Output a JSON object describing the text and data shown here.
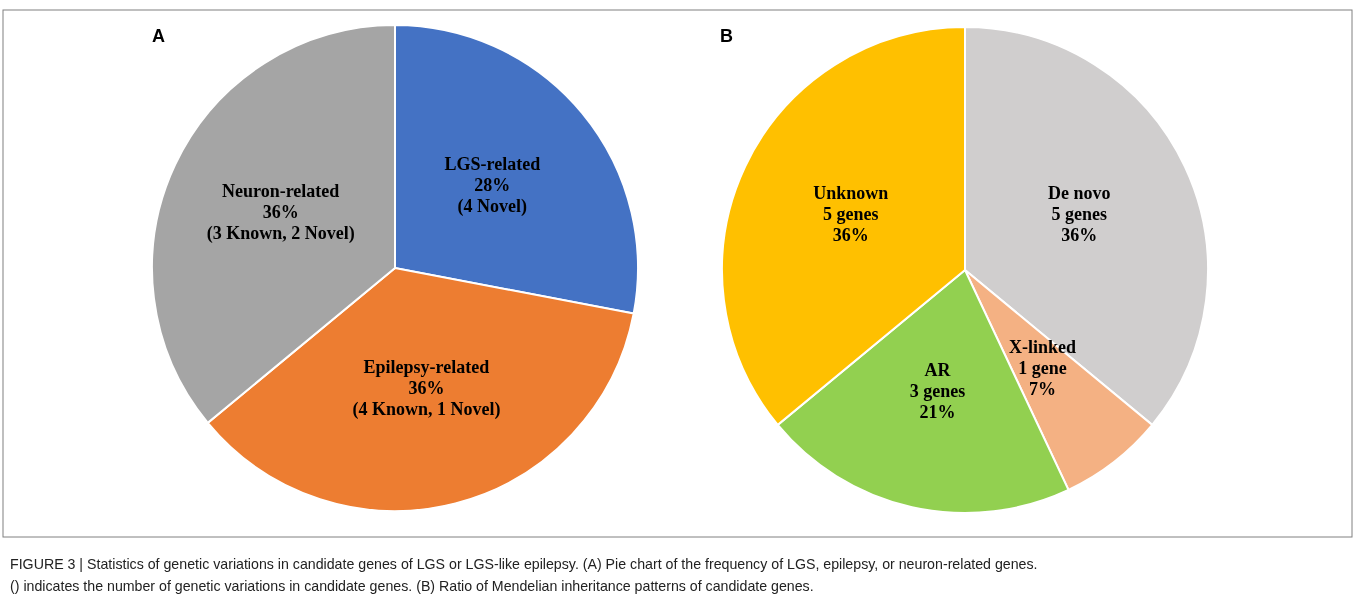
{
  "chart_data": [
    {
      "type": "pie",
      "title": "A",
      "categories": [
        "LGS-related",
        "Epilepsy-related",
        "Neuron-related"
      ],
      "values": [
        28,
        36,
        36
      ],
      "colors": [
        "#4472c4",
        "#ed7d31",
        "#a5a5a5"
      ],
      "value_labels": [
        "28%\n(4 Novel)",
        "36%\n(4 Known, 1 Novel)",
        "36%\n(3 Known, 2 Novel)"
      ],
      "legend": false,
      "annotations": [
        "FIGURE 3 | Statistics of genetic variations in candidate genes of LGS or LGS-like epilepsy. (A) Pie chart of the frequency of LGS, epilepsy, or neuron-related genes.",
        "() indicates the number of genetic variations in candidate genes. (B) Ratio of Mendelian inheritance patterns of candidate genes."
      ]
    },
    {
      "type": "pie",
      "title": "B",
      "categories": [
        "De novo",
        "X-linked",
        "AR",
        "Unknown"
      ],
      "values": [
        36,
        7,
        21,
        36
      ],
      "colors": [
        "#d0cece",
        "#f4b183",
        "#92d050",
        "#ffc000"
      ],
      "value_labels": [
        "5 genes\n36%",
        "1 gene\n7%",
        "3 genes\n21%",
        "5 genes\n36%"
      ],
      "legend": false
    }
  ]
}
